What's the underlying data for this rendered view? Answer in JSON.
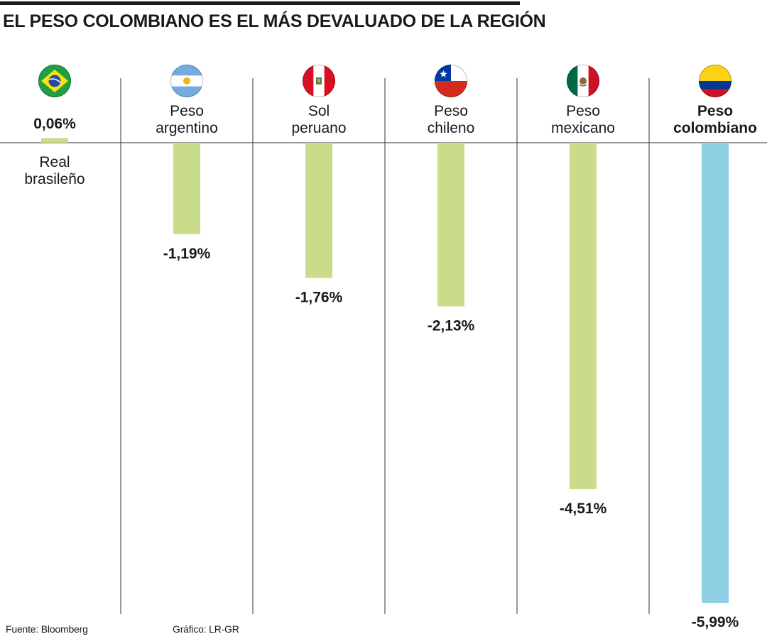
{
  "title": "EL PESO COLOMBIANO ES EL MÁS DEVALUADO DE LA REGIÓN",
  "footer": {
    "source": "Fuente: Bloomberg",
    "credit": "Gráfico: LR-GR"
  },
  "colors": {
    "bar_default": "#c8dc8a",
    "bar_highlight": "#8ecfe4",
    "divider": "#333333",
    "text": "#1a1a1a"
  },
  "chart_data": {
    "type": "bar",
    "title": "EL PESO COLOMBIANO ES EL MÁS DEVALUADO DE LA REGIÓN",
    "categories": [
      "Real brasileño",
      "Peso argentino",
      "Sol peruano",
      "Peso chileno",
      "Peso mexicano",
      "Peso colombiano"
    ],
    "values": [
      0.06,
      -1.19,
      -1.76,
      -2.13,
      -4.51,
      -5.99
    ],
    "value_labels": [
      "0,06%",
      "-1,19%",
      "-1,76%",
      "-2,13%",
      "-4,51%",
      "-5,99%"
    ],
    "name_lines": [
      [
        "Real",
        "brasileño"
      ],
      [
        "Peso",
        "argentino"
      ],
      [
        "Sol",
        "peruano"
      ],
      [
        "Peso",
        "chileno"
      ],
      [
        "Peso",
        "mexicano"
      ],
      [
        "Peso",
        "colombiano"
      ]
    ],
    "flags": [
      "brazil-flag-icon",
      "argentina-flag-icon",
      "peru-flag-icon",
      "chile-flag-icon",
      "mexico-flag-icon",
      "colombia-flag-icon"
    ],
    "highlight": "Peso colombiano",
    "ylim": [
      -5.99,
      0.06
    ],
    "xlabel": "",
    "ylabel": "",
    "grid": false,
    "legend": "none"
  }
}
